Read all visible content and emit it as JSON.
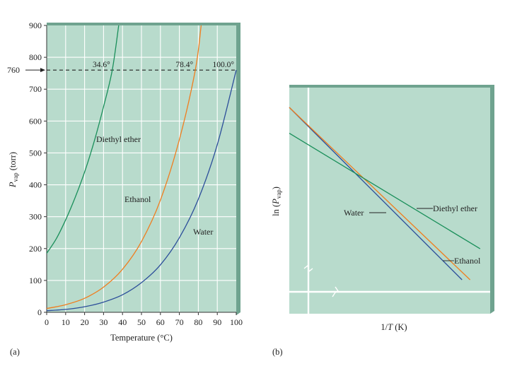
{
  "chart_data": [
    {
      "panel_label": "(a)",
      "type": "line",
      "xlabel": "Temperature (°C)",
      "ylabel": "P",
      "ylabel_sub": "vap",
      "ylabel_unit": " (torr)",
      "xlim": [
        0,
        100
      ],
      "ylim": [
        0,
        900
      ],
      "x_ticks": [
        0,
        10,
        20,
        30,
        40,
        50,
        60,
        70,
        80,
        90,
        100
      ],
      "y_ticks": [
        0,
        100,
        200,
        300,
        400,
        500,
        600,
        700,
        800,
        900
      ],
      "grid": true,
      "reference_line": {
        "y": 760,
        "label": "760"
      },
      "series": [
        {
          "name": "Diethyl ether",
          "color": "#1a8f5a",
          "points": [
            [
              0,
              185
            ],
            [
              5,
              230
            ],
            [
              10,
              290
            ],
            [
              15,
              360
            ],
            [
              20,
              440
            ],
            [
              25,
              535
            ],
            [
              30,
              645
            ],
            [
              34.6,
              760
            ],
            [
              38,
              900
            ]
          ]
        },
        {
          "name": "Ethanol",
          "color": "#f07d1e",
          "points": [
            [
              0,
              12
            ],
            [
              10,
              24
            ],
            [
              20,
              44
            ],
            [
              30,
              79
            ],
            [
              40,
              135
            ],
            [
              50,
              222
            ],
            [
              60,
              352
            ],
            [
              70,
              542
            ],
            [
              78.4,
              760
            ],
            [
              81.5,
              900
            ]
          ]
        },
        {
          "name": "Water",
          "color": "#2c4e9a",
          "points": [
            [
              0,
              5
            ],
            [
              10,
              9
            ],
            [
              20,
              17.5
            ],
            [
              30,
              32
            ],
            [
              40,
              55
            ],
            [
              50,
              93
            ],
            [
              60,
              149
            ],
            [
              70,
              234
            ],
            [
              80,
              355
            ],
            [
              90,
              526
            ],
            [
              100,
              760
            ]
          ]
        }
      ],
      "annotations": [
        {
          "text": "34.6°",
          "x": 34.6,
          "y": 760
        },
        {
          "text": "78.4°",
          "x": 78.4,
          "y": 760
        },
        {
          "text": "100.0°",
          "x": 100,
          "y": 760
        }
      ]
    },
    {
      "panel_label": "(b)",
      "type": "line",
      "xlabel_pre": "1/",
      "xlabel_var": "T",
      "xlabel_unit": " (K)",
      "ylabel_pre": "ln (",
      "ylabel_var": "P",
      "ylabel_sub": "vap",
      "ylabel_post": ")",
      "grid": false,
      "axis_breaks": true,
      "series": [
        {
          "name": "Water",
          "color": "#2c4e9a",
          "points": [
            [
              0,
              1.0
            ],
            [
              0.86,
              0.0
            ]
          ]
        },
        {
          "name": "Ethanol",
          "color": "#f07d1e",
          "points": [
            [
              0,
              1.0
            ],
            [
              0.9,
              0.0
            ]
          ]
        },
        {
          "name": "Diethyl ether",
          "color": "#1a8f5a",
          "points": [
            [
              0,
              0.85
            ],
            [
              0.95,
              0.18
            ]
          ]
        }
      ]
    }
  ]
}
